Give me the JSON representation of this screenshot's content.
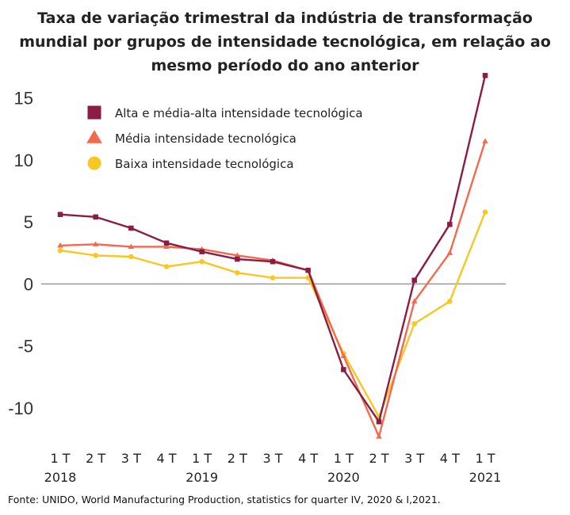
{
  "chart_data": {
    "type": "line",
    "title_lines": [
      "Taxa de variação trimestral da indústria de transformação",
      "mundial por grupos de intensidade tecnológica, em relação ao",
      "mesmo período do ano anterior"
    ],
    "ylim": [
      -13,
      16.5
    ],
    "yticks": [
      15,
      10,
      5,
      0,
      -5,
      -10
    ],
    "ytick_labels": [
      "15",
      "10",
      "5",
      "0",
      "-5",
      "-10"
    ],
    "quarters": [
      "1 T",
      "2 T",
      "3 T",
      "4 T",
      "1 T",
      "2 T",
      "3 T",
      "4 T",
      "1 T",
      "2 T",
      "3 T",
      "4 T",
      "1 T"
    ],
    "years": [
      {
        "label": "2018",
        "index": 0
      },
      {
        "label": "2019",
        "index": 4
      },
      {
        "label": "2020",
        "index": 8
      },
      {
        "label": "2021",
        "index": 12
      }
    ],
    "legend_position": "top-left",
    "series": [
      {
        "name": "Alta e média-alta intensidade tecnológica",
        "color": "#8b1c44",
        "marker": "square",
        "values": [
          5.6,
          5.4,
          4.5,
          3.3,
          2.6,
          2.0,
          1.8,
          1.1,
          -6.9,
          -11.1,
          0.3,
          4.8,
          16.8
        ]
      },
      {
        "name": "Média intensidade tecnológica",
        "color": "#f4694e",
        "marker": "triangle",
        "values": [
          3.1,
          3.2,
          3.0,
          3.0,
          2.8,
          2.3,
          1.9,
          1.1,
          -5.8,
          -12.3,
          -1.4,
          2.5,
          11.5
        ]
      },
      {
        "name": "Baixa intensidade tecnológica",
        "color": "#f9c623",
        "marker": "circle",
        "values": [
          2.7,
          2.3,
          2.2,
          1.4,
          1.8,
          0.9,
          0.5,
          0.5,
          -5.6,
          -10.7,
          -3.2,
          -1.4,
          5.8
        ]
      }
    ],
    "source": "Fonte: UNIDO, World  Manufacturing Production,  statistics for quarter IV, 2020 & I,2021."
  }
}
